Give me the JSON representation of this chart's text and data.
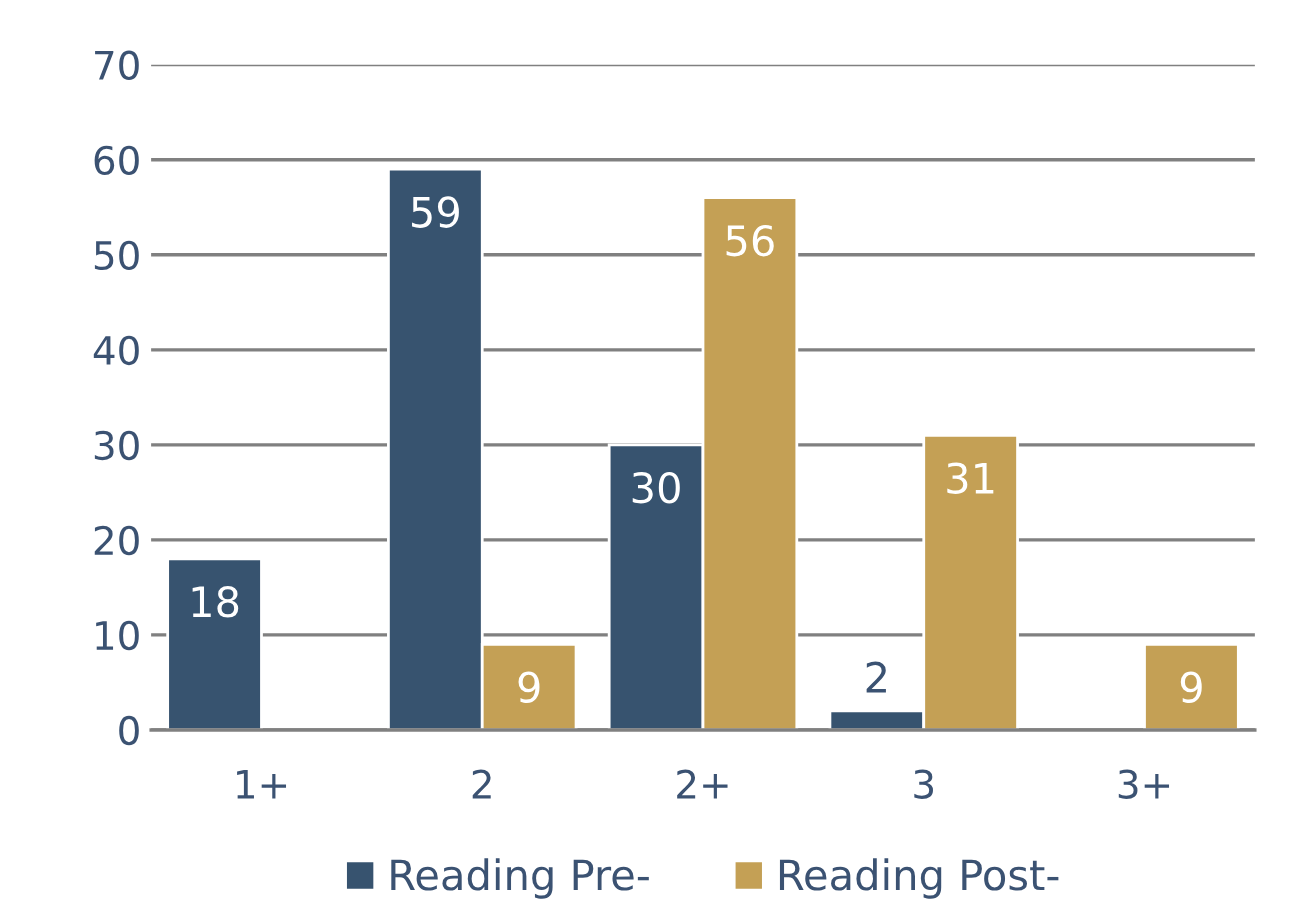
{
  "chart_data": {
    "type": "bar",
    "categories": [
      "1+",
      "2",
      "2+",
      "3",
      "3+"
    ],
    "series": [
      {
        "name": "Reading Pre-",
        "color": "#37536f",
        "values": [
          18,
          59,
          30,
          2,
          null
        ]
      },
      {
        "name": "Reading Post-",
        "color": "#c4a055",
        "values": [
          null,
          9,
          56,
          31,
          9
        ]
      }
    ],
    "ylim": [
      0,
      70
    ],
    "yticks": [
      0,
      10,
      20,
      30,
      40,
      50,
      60,
      70
    ],
    "grid": "y",
    "legend": "bottom",
    "data_labels": true
  }
}
